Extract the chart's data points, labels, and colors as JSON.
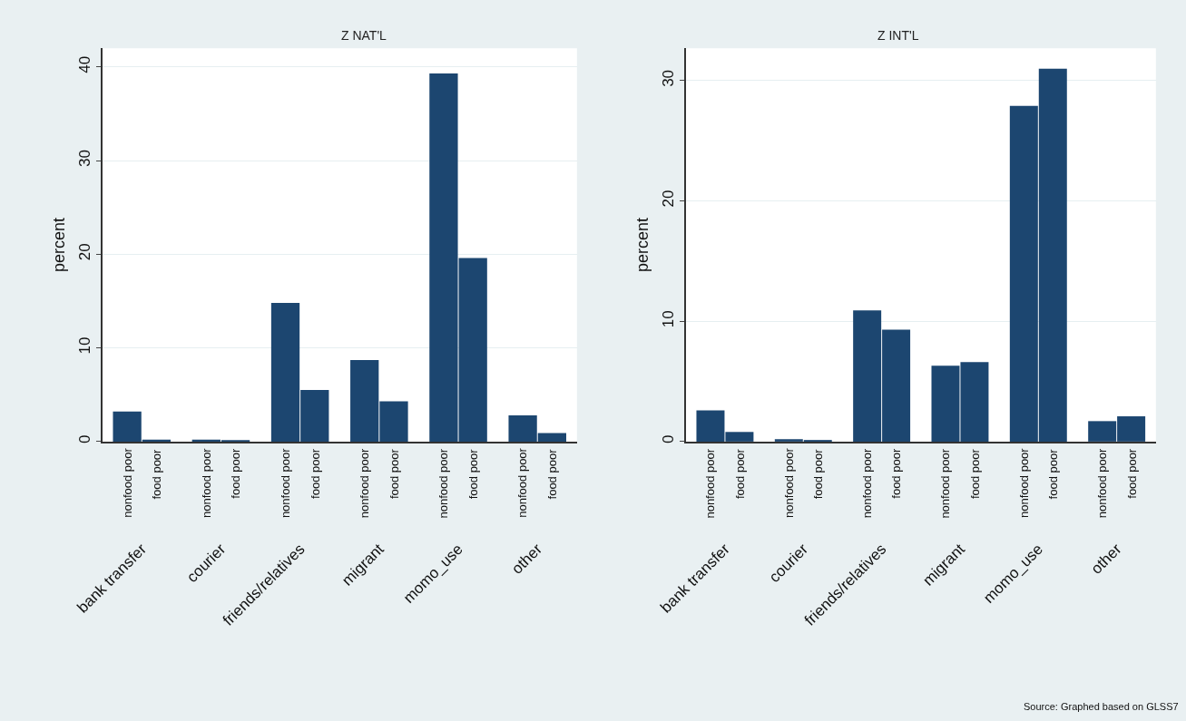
{
  "chart_data": [
    {
      "type": "bar",
      "title": "Z NAT'L",
      "ylabel": "percent",
      "categories": [
        "bank transfer",
        "courier",
        "friends/relatives",
        "migrant",
        "momo_use",
        "other"
      ],
      "series": [
        {
          "name": "nonfood poor",
          "color": "#1c4670",
          "values": [
            3.2,
            0.2,
            14.8,
            8.7,
            39.3,
            2.8
          ]
        },
        {
          "name": "food poor",
          "color": "#1c4670",
          "values": [
            0.2,
            0.1,
            5.5,
            4.3,
            19.6,
            0.9
          ]
        }
      ],
      "ylim": [
        0,
        42
      ],
      "yticks": [
        0,
        10,
        20,
        30,
        40
      ],
      "grid": "y"
    },
    {
      "type": "bar",
      "title": "Z INT'L",
      "ylabel": "percent",
      "categories": [
        "bank transfer",
        "courier",
        "friends/relatives",
        "migrant",
        "momo_use",
        "other"
      ],
      "series": [
        {
          "name": "nonfood poor",
          "color": "#1c4670",
          "values": [
            2.6,
            0.2,
            10.9,
            6.3,
            27.9,
            1.7
          ]
        },
        {
          "name": "food poor",
          "color": "#1c4670",
          "values": [
            0.8,
            0.1,
            9.3,
            6.6,
            31.0,
            2.1
          ]
        }
      ],
      "ylim": [
        0,
        32.7
      ],
      "yticks": [
        0,
        10,
        20,
        30
      ],
      "grid": "y",
      "annotations": [
        "Source: Graphed based on GLSS7"
      ]
    }
  ]
}
